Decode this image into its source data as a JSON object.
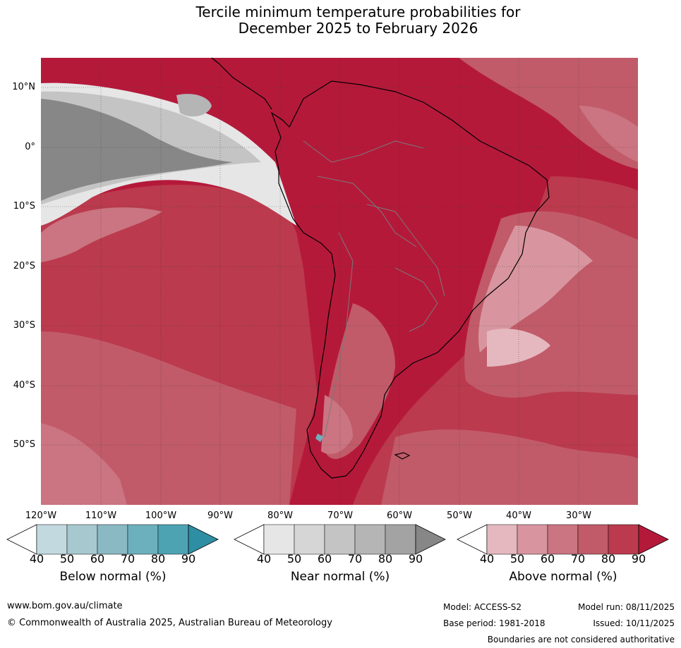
{
  "title": {
    "line1": "Tercile minimum temperature probabilities for",
    "line2": "December 2025 to February 2026"
  },
  "map": {
    "region": "South America",
    "lat_labels": [
      "10°N",
      "0°",
      "10°S",
      "20°S",
      "30°S",
      "40°S",
      "50°S"
    ],
    "lon_labels": [
      "120°W",
      "110°W",
      "100°W",
      "90°W",
      "80°W",
      "70°W",
      "60°W",
      "50°W",
      "40°W",
      "30°W"
    ]
  },
  "legend": {
    "below": {
      "label": "Below normal (%)",
      "ticks": [
        "40",
        "50",
        "60",
        "70",
        "80",
        "90"
      ],
      "colors": [
        "#ffffff",
        "#c2d9df",
        "#a7c8cf",
        "#8ab9c3",
        "#6db0bd",
        "#4ea3b3",
        "#2e8ea3"
      ]
    },
    "near": {
      "label": "Near normal (%)",
      "ticks": [
        "40",
        "50",
        "60",
        "70",
        "80",
        "90"
      ],
      "colors": [
        "#ffffff",
        "#e6e6e6",
        "#d6d6d6",
        "#c4c4c4",
        "#b5b5b5",
        "#a3a3a3",
        "#878787"
      ]
    },
    "above": {
      "label": "Above normal (%)",
      "ticks": [
        "40",
        "50",
        "60",
        "70",
        "80",
        "90"
      ],
      "colors": [
        "#ffffff",
        "#e5b8bf",
        "#d8959f",
        "#ca7581",
        "#c15b69",
        "#bb3a4d",
        "#b5193a"
      ]
    }
  },
  "footer": {
    "website": "www.bom.gov.au/climate",
    "copyright": "© Commonwealth of Australia 2025, Australian Bureau of Meteorology",
    "model": "Model: ACCESS-S2",
    "model_run": "Model run: 08/11/2025",
    "base_period": "Base period: 1981-2018",
    "issued": "Issued: 10/11/2025",
    "disclaimer": "Boundaries are not considered authoritative"
  }
}
